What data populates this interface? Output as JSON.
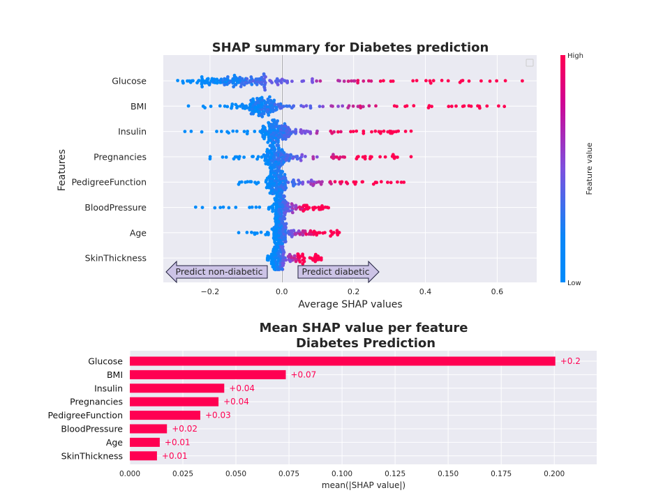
{
  "chart_data": [
    {
      "type": "scatter",
      "title": "SHAP summary for Diabetes prediction",
      "xlabel": "Average SHAP values",
      "ylabel": "Features",
      "xlim": [
        -0.33,
        0.71
      ],
      "xticks": [
        "−0.2",
        "0.0",
        "0.2",
        "0.4",
        "0.6"
      ],
      "xtick_values": [
        -0.2,
        0.0,
        0.2,
        0.4,
        0.6
      ],
      "grid": true,
      "legend": "empty box, top-right",
      "colorbar": {
        "label": "Feature value",
        "high": "High",
        "low": "Low",
        "colors": [
          "#008bfb",
          "#7d50de",
          "#ff0052"
        ]
      },
      "annotations": {
        "left_arrow": "Predict non-diabetic",
        "right_arrow": "Predict diabetic"
      },
      "series": [
        {
          "feature": "Glucose",
          "range": [
            -0.29,
            0.67
          ]
        },
        {
          "feature": "BMI",
          "range": [
            -0.26,
            0.62
          ]
        },
        {
          "feature": "Insulin",
          "range": [
            -0.27,
            0.36
          ]
        },
        {
          "feature": "Pregnancies",
          "range": [
            -0.2,
            0.36
          ]
        },
        {
          "feature": "PedigreeFunction",
          "range": [
            -0.12,
            0.34
          ]
        },
        {
          "feature": "BloodPressure",
          "range": [
            -0.24,
            0.13
          ]
        },
        {
          "feature": "Age",
          "range": [
            -0.12,
            0.16
          ]
        },
        {
          "feature": "SkinThickness",
          "range": [
            -0.04,
            0.11
          ]
        }
      ]
    },
    {
      "type": "bar",
      "orientation": "horizontal",
      "title": "Mean SHAP value per feature\nDiabetes Prediction",
      "title_lines": [
        "Mean SHAP value per feature",
        "Diabetes Prediction"
      ],
      "xlabel": "mean(|SHAP value|)",
      "xlim": [
        0,
        0.22
      ],
      "xticks": [
        "0.000",
        "0.025",
        "0.050",
        "0.075",
        "0.100",
        "0.125",
        "0.150",
        "0.175",
        "0.200"
      ],
      "xtick_values": [
        0,
        0.025,
        0.05,
        0.075,
        0.1,
        0.125,
        0.15,
        0.175,
        0.2
      ],
      "grid": true,
      "bar_color": "#ff0052",
      "categories": [
        "Glucose",
        "BMI",
        "Insulin",
        "Pregnancies",
        "PedigreeFunction",
        "BloodPressure",
        "Age",
        "SkinThickness"
      ],
      "values": [
        0.2005,
        0.0735,
        0.0445,
        0.0418,
        0.0332,
        0.0175,
        0.0141,
        0.0128
      ],
      "data_labels": [
        "+0.2",
        "+0.07",
        "+0.04",
        "+0.04",
        "+0.03",
        "+0.02",
        "+0.01",
        "+0.01"
      ]
    }
  ]
}
